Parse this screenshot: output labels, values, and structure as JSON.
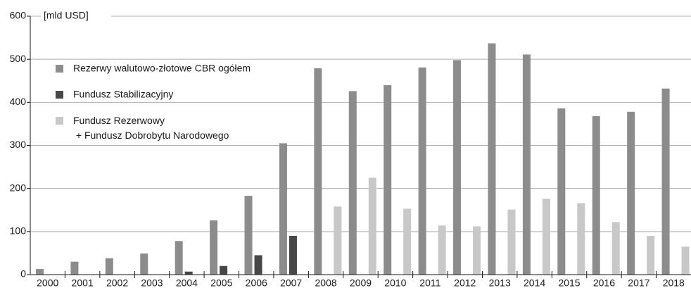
{
  "chart_data": {
    "type": "bar",
    "y_unit_label": "[mld USD]",
    "categories": [
      "2000",
      "2001",
      "2002",
      "2003",
      "2004",
      "2005",
      "2006",
      "2007",
      "2008",
      "2009",
      "2010",
      "2011",
      "2012",
      "2013",
      "2014",
      "2015",
      "2016",
      "2017",
      "2018"
    ],
    "series": [
      {
        "name": "Rezerwy walutowo-złotowe CBR ogółem",
        "color": "#8c8c8c",
        "values": [
          13,
          30,
          38,
          49,
          78,
          126,
          183,
          305,
          479,
          426,
          440,
          481,
          498,
          537,
          511,
          386,
          368,
          378,
          432
        ]
      },
      {
        "name": "Fundusz Stabilizacyjny",
        "color": "#474747",
        "values": [
          null,
          null,
          null,
          null,
          7,
          20,
          45,
          90,
          null,
          null,
          null,
          null,
          null,
          null,
          null,
          null,
          null,
          null,
          null
        ]
      },
      {
        "name": "Fundusz Rezerwowy\n+ Fundusz Dobrobytu Narodowego",
        "color": "#c8c8c8",
        "values": [
          null,
          null,
          null,
          null,
          null,
          null,
          null,
          null,
          158,
          225,
          153,
          114,
          112,
          151,
          176,
          166,
          122,
          90,
          65
        ]
      }
    ],
    "ylim": [
      0,
      600
    ],
    "yticks": [
      0,
      100,
      200,
      300,
      400,
      500,
      600
    ],
    "grid": true,
    "legend": "upper left"
  }
}
